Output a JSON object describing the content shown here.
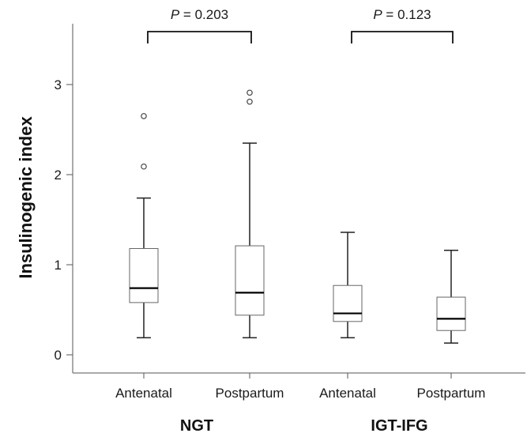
{
  "chart_data": {
    "type": "box",
    "ylabel": "Insulinogenic index",
    "ylim": [
      -0.22,
      3.7
    ],
    "yticks": [
      0,
      1,
      2,
      3
    ],
    "grid": false,
    "groups": [
      {
        "name": "NGT",
        "boxes": [
          {
            "category": "Antenatal",
            "min": 0.19,
            "q1": 0.58,
            "median": 0.74,
            "q3": 1.18,
            "max": 1.74,
            "outliers": [
              2.09,
              2.65
            ]
          },
          {
            "category": "Postpartum",
            "min": 0.19,
            "q1": 0.44,
            "median": 0.69,
            "q3": 1.21,
            "max": 2.35,
            "outliers": [
              2.81,
              2.91
            ]
          }
        ],
        "comparison": {
          "p_label": "P",
          "p_value_text": "= 0.203"
        }
      },
      {
        "name": "IGT-IFG",
        "boxes": [
          {
            "category": "Antenatal",
            "min": 0.19,
            "q1": 0.37,
            "median": 0.46,
            "q3": 0.77,
            "max": 1.36,
            "outliers": []
          },
          {
            "category": "Postpartum",
            "min": 0.13,
            "q1": 0.27,
            "median": 0.4,
            "q3": 0.64,
            "max": 1.16,
            "outliers": []
          }
        ],
        "comparison": {
          "p_label": "P",
          "p_value_text": "= 0.123"
        }
      }
    ],
    "colors": {
      "box_fill": "#ffffff",
      "stroke": "#222222",
      "median": "#000000"
    }
  }
}
